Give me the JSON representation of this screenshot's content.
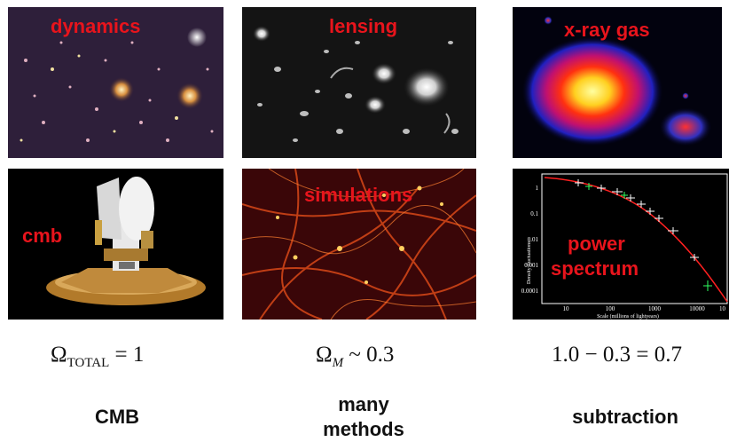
{
  "panels": {
    "dynamics": {
      "label": "dynamics"
    },
    "lensing": {
      "label": "lensing"
    },
    "xray": {
      "label": "x-ray gas"
    },
    "cmb": {
      "label": "cmb"
    },
    "simulations": {
      "label": "simulations"
    },
    "power": {
      "label_line1": "power",
      "label_line2": "spectrum",
      "ylabel": "Density fluctuations",
      "xlabel": "Scale (millions of lightyears)",
      "yticks": [
        "1",
        "0.1",
        "0.01",
        "0.001",
        "0.0001"
      ],
      "xticks": [
        "10",
        "100",
        "1000",
        "10000",
        "10"
      ]
    }
  },
  "equations": {
    "total": {
      "symbol": "Ω",
      "sub": "TOTAL",
      "rest": " = 1"
    },
    "matter": {
      "symbol": "Ω",
      "sub": "M",
      "rest": " ~  0.3"
    },
    "lambda": {
      "text": "1.0 − 0.3 = 0.7"
    }
  },
  "captions": {
    "cmb": "CMB",
    "methods_line1": "many",
    "methods_line2": "methods",
    "subtraction": "subtraction"
  },
  "colors": {
    "label_red": "#e8141c"
  }
}
